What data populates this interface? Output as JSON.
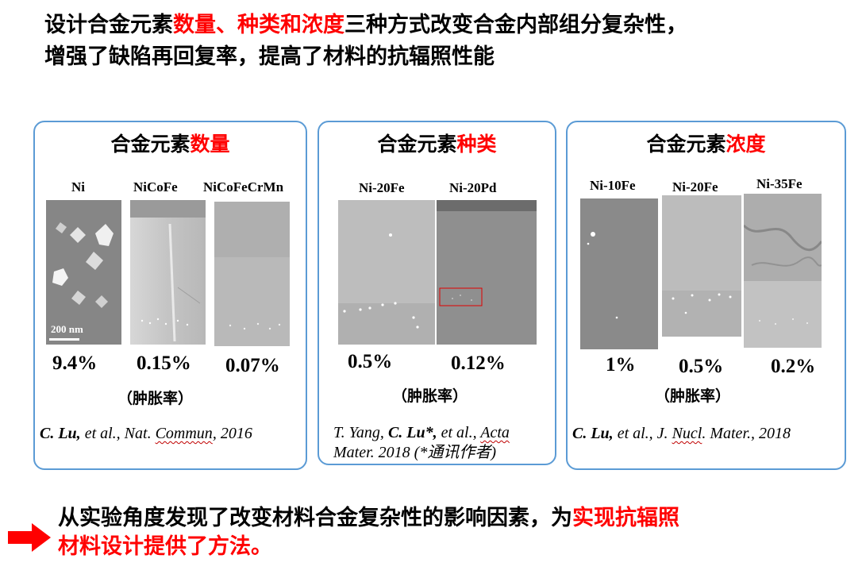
{
  "title": {
    "line1_a": "设计合金元素",
    "line1_b": "数量、种类和浓度",
    "line1_c": "三种方式改变合金内部组分复杂性，",
    "line2": "增强了缺陷再回复率，提高了材料的抗辐照性能"
  },
  "panels": [
    {
      "title_a": "合金元素",
      "title_b": "数量",
      "samples": [
        "Ni",
        "NiCoFe",
        "NiCoFeCrMn"
      ],
      "values": [
        "9.4%",
        "0.15%",
        "0.07%"
      ],
      "unit": "（肿胀率）",
      "scale": "200 nm",
      "cite": {
        "a": "C. Lu,",
        "b": " et al., Nat. ",
        "c": "Commun",
        "d": ", 2016"
      }
    },
    {
      "title_a": "合金元素",
      "title_b": "种类",
      "samples": [
        "Ni-20Fe",
        "Ni-20Pd"
      ],
      "values": [
        "0.5%",
        "0.12%"
      ],
      "unit": "（肿胀率）",
      "cite": {
        "a": "T. Yang, ",
        "b": "C. Lu*,",
        "c": " et al., ",
        "d": "Acta",
        "e": "Mater. 2018 (*",
        "f": "通讯作者",
        "g": ")"
      }
    },
    {
      "title_a": "合金元素",
      "title_b": "浓度",
      "samples": [
        "Ni-10Fe",
        "Ni-20Fe",
        "Ni-35Fe"
      ],
      "values": [
        "1%",
        "0.5%",
        "0.2%"
      ],
      "unit": "（肿胀率）",
      "cite": {
        "a": "C. Lu,",
        "b": " et al., J. ",
        "c": "Nucl",
        "d": ". Mater., 2018"
      }
    }
  ],
  "conclusion": {
    "a": "从实验角度发现了改变材料合金复杂性的影响因素，为",
    "b": "实现抗辐照",
    "c": "材料设计提供了方法。"
  },
  "colors": {
    "accent": "#ff0000",
    "panel_border": "#5b9bd5"
  },
  "icons": {
    "bullet": "right-arrow-icon"
  }
}
